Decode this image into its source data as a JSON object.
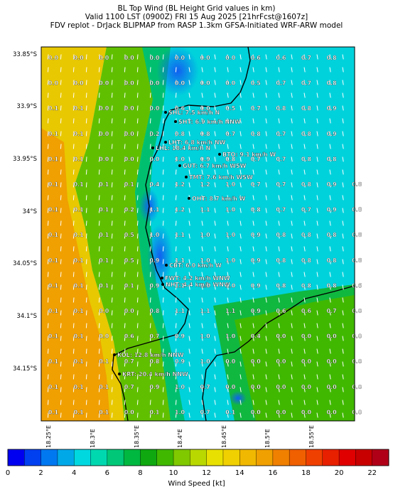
{
  "header": {
    "line1": "BL Top Wind (BL Height Grid values in km)",
    "line2": "Valid 1100 LST (0900Z) FRI 15 Aug 2025 [21hrFcst@1607z]",
    "line3": "FDV replot - DrJack BLIPMAP from RASP 1.3km GFSA-Initiated WRF-ARW model"
  },
  "lat_labels": [
    "33.85°S",
    "33.9°S",
    "33.95°S",
    "34°S",
    "34.05°S",
    "34.1°S",
    "34.15°S"
  ],
  "lon_labels": [
    "18.25°E",
    "18.3°E",
    "18.35°E",
    "18.4°E",
    "18.45°E",
    "18.5°E",
    "18.55°E"
  ],
  "grid_values": [
    [
      "0.0",
      "0.0",
      "0.0",
      "0.0",
      "0.0",
      "0.0",
      "0.0",
      "0.0",
      "0.6",
      "0.6",
      "0.7",
      "0.8"
    ],
    [
      "0.0",
      "0.0",
      "0.0",
      "0.0",
      "0.0",
      "0.0",
      "0.0",
      "0.0",
      "0.5",
      "0.7",
      "0.7",
      "0.8"
    ],
    [
      "0.1",
      "0.1",
      "0.0",
      "0.0",
      "0.0",
      "0.6",
      "0.0",
      "0.5",
      "0.7",
      "0.8",
      "0.8",
      "0.9"
    ],
    [
      "0.1",
      "0.1",
      "0.0",
      "0.0",
      "0.2",
      "0.8",
      "0.8",
      "0.7",
      "0.8",
      "0.7",
      "0.8",
      "0.9"
    ],
    [
      "0.1",
      "0.1",
      "0.0",
      "0.0",
      "0.0",
      "1.0",
      "0.9",
      "0.8",
      "0.7",
      "0.7",
      "0.8",
      "0.8"
    ],
    [
      "0.1",
      "0.1",
      "0.1",
      "0.1",
      "0.4",
      "1.2",
      "1.2",
      "1.0",
      "0.7",
      "0.7",
      "0.8",
      "0.9",
      "0.8"
    ],
    [
      "0.1",
      "0.1",
      "0.1",
      "0.2",
      "1.1",
      "1.2",
      "1.1",
      "1.0",
      "0.8",
      "0.7",
      "0.7",
      "0.9",
      "0.8"
    ],
    [
      "0.1",
      "0.1",
      "0.1",
      "0.5",
      "1.0",
      "1.1",
      "1.0",
      "1.0",
      "0.9",
      "0.8",
      "0.8",
      "0.8",
      "0.8"
    ],
    [
      "0.1",
      "0.1",
      "0.1",
      "0.5",
      "0.9",
      "1.1",
      "1.0",
      "1.0",
      "0.9",
      "0.8",
      "0.8",
      "0.8",
      "0.8"
    ],
    [
      "0.1",
      "0.1",
      "0.1",
      "0.1",
      "0.9",
      "1.1",
      "1.0",
      "1.0",
      "0.9",
      "0.8",
      "0.8",
      "0.8",
      "0.6"
    ],
    [
      "0.1",
      "0.1",
      "0.0",
      "0.0",
      "0.8",
      "1.1",
      "1.1",
      "1.1",
      "0.9",
      "0.6",
      "0.6",
      "0.7",
      "0.0"
    ],
    [
      "0.1",
      "0.1",
      "0.0",
      "0.6",
      "0.7",
      "0.9",
      "1.0",
      "1.0",
      "0.4",
      "0.0",
      "0.0",
      "0.0",
      "0.0"
    ],
    [
      "0.1",
      "0.1",
      "0.1",
      "0.7",
      "0.8",
      "0.9",
      "1.0",
      "0.0",
      "0.0",
      "0.0",
      "0.0",
      "0.0",
      "0.0"
    ],
    [
      "0.1",
      "0.1",
      "0.1",
      "0.7",
      "0.9",
      "1.0",
      "0.7",
      "0.0",
      "0.0",
      "0.0",
      "0.0",
      "0.0",
      "0.0"
    ],
    [
      "0.1",
      "0.1",
      "0.1",
      "0.0",
      "0.1",
      "1.0",
      "0.7",
      "0.1",
      "0.0",
      "0.0",
      "0.0",
      "0.0",
      "0.0"
    ]
  ],
  "stations": [
    {
      "label": "SHL: 7.5 km/h N"
    },
    {
      "label": "SHT: 6.9 km/h NNW"
    },
    {
      "label": "LHT: 6.8 km/h NW"
    },
    {
      "label": "LHL: 18.4 km/h N"
    },
    {
      "label": "BTO: 9.1 km/h W"
    },
    {
      "label": "GUT: 6.7 km/h WSW"
    },
    {
      "label": "TMT: 7.6 km/h WSW"
    },
    {
      "label": "OHT: 8.7 km/h W"
    },
    {
      "label": "CBT: 6.0 km/h W"
    },
    {
      "label": "FWT: 4.2 km/h WNW"
    },
    {
      "label": "NHT: 4.4 km/h WNW"
    },
    {
      "label": "KOL: 12.8 km/h NNW"
    },
    {
      "label": "KRT: 20.4 km/h NNW"
    }
  ],
  "colorbar": {
    "ticks": [
      "0",
      "2",
      "4",
      "6",
      "8",
      "10",
      "12",
      "14",
      "16",
      "18",
      "20",
      "22"
    ],
    "label": "Wind Speed [kt]",
    "colors": [
      "#0000f0",
      "#0040f0",
      "#0078f0",
      "#00a8e8",
      "#00d8e0",
      "#00d8b0",
      "#00c878",
      "#00b840",
      "#10a810",
      "#40b800",
      "#80c800",
      "#b8d800",
      "#e8e000",
      "#f0d000",
      "#f0b800",
      "#f0a000",
      "#f08000",
      "#f06000",
      "#f04000",
      "#e82000",
      "#e00000",
      "#c80000",
      "#b00018"
    ]
  }
}
